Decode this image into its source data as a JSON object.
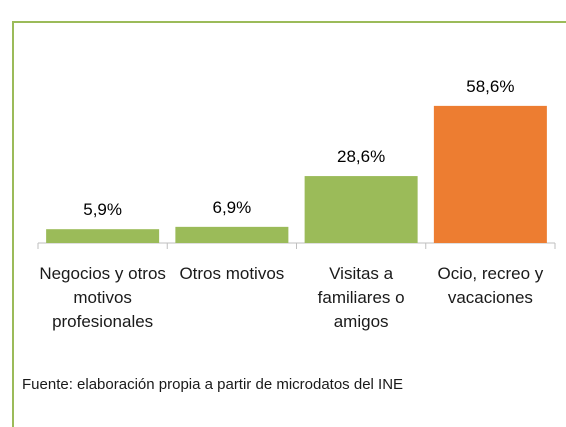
{
  "chart_data": {
    "type": "bar",
    "categories": [
      "Negocios y otros motivos profesionales",
      "Otros motivos",
      "Visitas a familiares o amigos",
      "Ocio, recreo y vacaciones"
    ],
    "values": [
      5.9,
      6.9,
      28.6,
      58.6
    ],
    "value_labels": [
      "5,9%",
      "6,9%",
      "28,6%",
      "58,6%"
    ],
    "colors": [
      "#9bbb59",
      "#9bbb59",
      "#9bbb59",
      "#ed7d31"
    ],
    "source": "Fuente: elaboración propia a partir de microdatos del INE"
  }
}
